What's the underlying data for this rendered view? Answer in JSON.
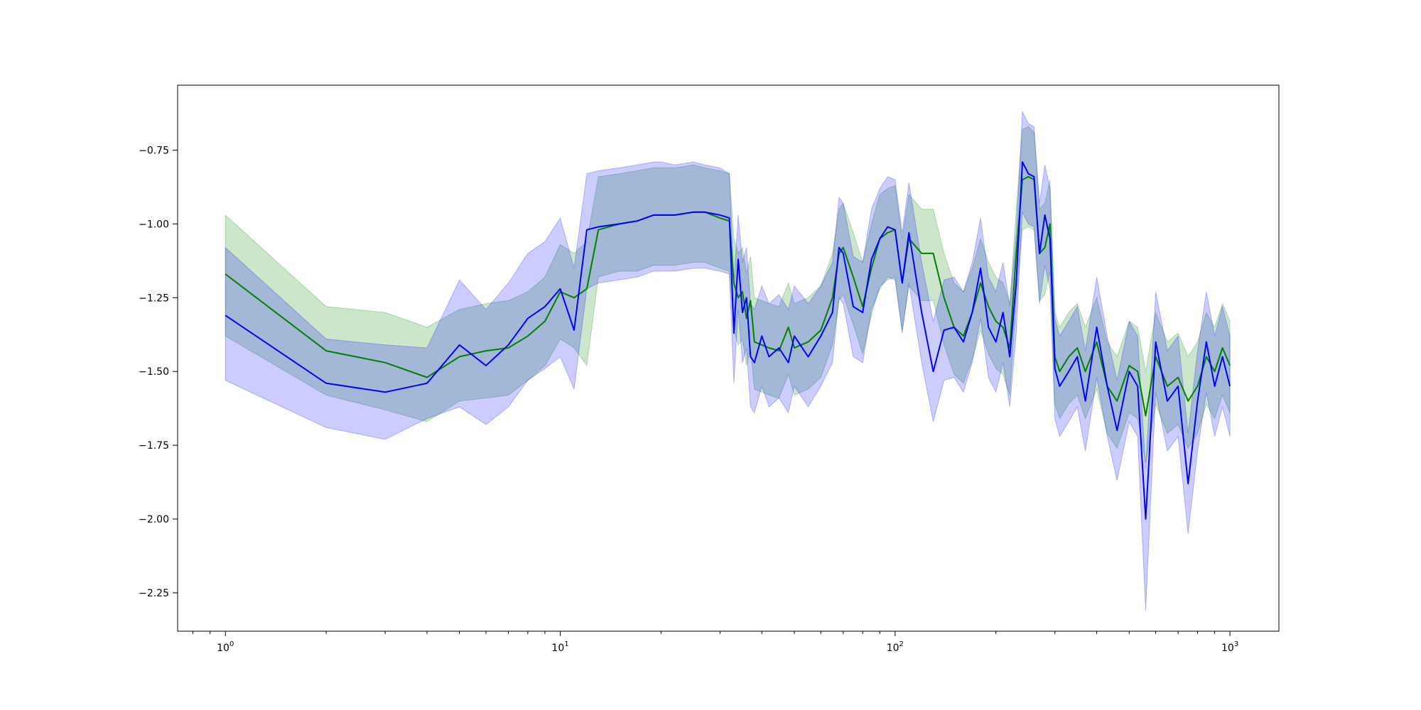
{
  "chart_data": {
    "type": "line",
    "title": "",
    "xlabel": "",
    "ylabel": "",
    "x_scale": "log",
    "xlim": [
      0.72,
      1400
    ],
    "ylim": [
      -2.38,
      -0.53
    ],
    "grid": false,
    "legend": "none",
    "x_ticks": [
      {
        "value": 1,
        "base": "10",
        "exp": "0"
      },
      {
        "value": 10,
        "base": "10",
        "exp": "1"
      },
      {
        "value": 100,
        "base": "10",
        "exp": "2"
      },
      {
        "value": 1000,
        "base": "10",
        "exp": "3"
      }
    ],
    "y_ticks": [
      {
        "value": -0.75,
        "label": "−0.75"
      },
      {
        "value": -1.0,
        "label": "−1.00"
      },
      {
        "value": -1.25,
        "label": "−1.25"
      },
      {
        "value": -1.5,
        "label": "−1.50"
      },
      {
        "value": -1.75,
        "label": "−1.75"
      },
      {
        "value": -2.0,
        "label": "−2.00"
      },
      {
        "value": -2.25,
        "label": "−2.25"
      }
    ],
    "series": [
      {
        "color": "#008000",
        "band_color": "#008000",
        "band_opacity": 0.2,
        "x": [
          1,
          2,
          3,
          4,
          5,
          6,
          7,
          8,
          9,
          10,
          11,
          12,
          13,
          15,
          17,
          19,
          20,
          22,
          25,
          27,
          30,
          32,
          33,
          34,
          35,
          36,
          37,
          38,
          40,
          42,
          45,
          48,
          50,
          55,
          60,
          65,
          68,
          70,
          75,
          80,
          85,
          90,
          95,
          100,
          105,
          110,
          120,
          130,
          140,
          150,
          160,
          170,
          180,
          190,
          200,
          210,
          220,
          230,
          240,
          250,
          260,
          270,
          280,
          290,
          300,
          310,
          330,
          350,
          370,
          400,
          430,
          460,
          500,
          530,
          560,
          600,
          650,
          700,
          750,
          800,
          850,
          900,
          950,
          1000
        ],
        "y": [
          -1.17,
          -1.43,
          -1.47,
          -1.52,
          -1.45,
          -1.43,
          -1.42,
          -1.38,
          -1.33,
          -1.23,
          -1.25,
          -1.22,
          -1.02,
          -1.0,
          -0.99,
          -0.97,
          -0.97,
          -0.97,
          -0.96,
          -0.96,
          -0.98,
          -0.99,
          -1.2,
          -1.25,
          -1.23,
          -1.32,
          -1.26,
          -1.4,
          -1.41,
          -1.42,
          -1.43,
          -1.35,
          -1.42,
          -1.4,
          -1.36,
          -1.25,
          -1.1,
          -1.08,
          -1.18,
          -1.28,
          -1.15,
          -1.05,
          -1.03,
          -1.02,
          -1.2,
          -1.05,
          -1.1,
          -1.1,
          -1.25,
          -1.35,
          -1.38,
          -1.3,
          -1.2,
          -1.28,
          -1.33,
          -1.35,
          -1.42,
          -1.1,
          -0.85,
          -0.84,
          -0.85,
          -1.1,
          -1.08,
          -1.0,
          -1.45,
          -1.5,
          -1.45,
          -1.42,
          -1.5,
          -1.4,
          -1.55,
          -1.6,
          -1.48,
          -1.5,
          -1.65,
          -1.45,
          -1.55,
          -1.52,
          -1.6,
          -1.55,
          -1.45,
          -1.5,
          -1.42,
          -1.48
        ],
        "upper": [
          -0.97,
          -1.28,
          -1.3,
          -1.35,
          -1.29,
          -1.27,
          -1.26,
          -1.23,
          -1.18,
          -1.07,
          -1.1,
          -1.06,
          -0.84,
          -0.83,
          -0.82,
          -0.81,
          -0.81,
          -0.81,
          -0.8,
          -0.81,
          -0.82,
          -0.83,
          -1.05,
          -1.1,
          -1.08,
          -1.17,
          -1.11,
          -1.25,
          -1.26,
          -1.27,
          -1.28,
          -1.2,
          -1.27,
          -1.25,
          -1.21,
          -1.1,
          -0.95,
          -0.93,
          -1.03,
          -1.13,
          -1.0,
          -0.9,
          -0.88,
          -0.87,
          -1.05,
          -0.9,
          -0.95,
          -0.95,
          -1.1,
          -1.2,
          -1.23,
          -1.15,
          -1.05,
          -1.13,
          -1.18,
          -1.2,
          -1.27,
          -0.95,
          -0.68,
          -0.67,
          -0.69,
          -0.95,
          -0.93,
          -0.85,
          -1.3,
          -1.35,
          -1.3,
          -1.27,
          -1.35,
          -1.25,
          -1.4,
          -1.45,
          -1.33,
          -1.35,
          -1.5,
          -1.3,
          -1.4,
          -1.37,
          -1.45,
          -1.4,
          -1.3,
          -1.35,
          -1.27,
          -1.33
        ],
        "lower": [
          -1.38,
          -1.58,
          -1.63,
          -1.67,
          -1.6,
          -1.59,
          -1.58,
          -1.53,
          -1.48,
          -1.39,
          -1.42,
          -1.48,
          -1.18,
          -1.16,
          -1.16,
          -1.14,
          -1.14,
          -1.14,
          -1.13,
          -1.13,
          -1.15,
          -1.16,
          -1.36,
          -1.41,
          -1.39,
          -1.48,
          -1.42,
          -1.56,
          -1.57,
          -1.58,
          -1.59,
          -1.51,
          -1.58,
          -1.56,
          -1.52,
          -1.41,
          -1.26,
          -1.24,
          -1.34,
          -1.44,
          -1.31,
          -1.21,
          -1.19,
          -1.18,
          -1.36,
          -1.21,
          -1.26,
          -1.26,
          -1.41,
          -1.51,
          -1.54,
          -1.46,
          -1.36,
          -1.44,
          -1.49,
          -1.51,
          -1.58,
          -1.26,
          -1.02,
          -1.01,
          -1.02,
          -1.26,
          -1.24,
          -1.16,
          -1.61,
          -1.66,
          -1.61,
          -1.58,
          -1.66,
          -1.56,
          -1.71,
          -1.76,
          -1.64,
          -1.66,
          -1.81,
          -1.61,
          -1.71,
          -1.68,
          -1.76,
          -1.71,
          -1.61,
          -1.66,
          -1.58,
          -1.64
        ]
      },
      {
        "color": "#0000ff",
        "band_color": "#0000ff",
        "band_opacity": 0.2,
        "x": [
          1,
          2,
          3,
          4,
          5,
          6,
          7,
          8,
          9,
          10,
          11,
          12,
          13,
          15,
          17,
          19,
          20,
          22,
          25,
          27,
          30,
          32,
          33,
          34,
          35,
          36,
          37,
          38,
          40,
          42,
          45,
          48,
          50,
          55,
          60,
          65,
          68,
          70,
          75,
          80,
          85,
          90,
          95,
          100,
          105,
          110,
          120,
          130,
          140,
          150,
          160,
          170,
          180,
          190,
          200,
          210,
          220,
          230,
          240,
          250,
          260,
          270,
          280,
          290,
          300,
          310,
          330,
          350,
          370,
          400,
          430,
          460,
          500,
          530,
          560,
          600,
          650,
          700,
          750,
          800,
          850,
          900,
          950,
          1000
        ],
        "y": [
          -1.31,
          -1.54,
          -1.57,
          -1.54,
          -1.41,
          -1.48,
          -1.41,
          -1.32,
          -1.28,
          -1.22,
          -1.36,
          -1.02,
          -1.01,
          -1.0,
          -0.99,
          -0.97,
          -0.97,
          -0.97,
          -0.96,
          -0.96,
          -0.97,
          -0.98,
          -1.37,
          -1.12,
          -1.3,
          -1.25,
          -1.45,
          -1.47,
          -1.38,
          -1.45,
          -1.42,
          -1.47,
          -1.38,
          -1.45,
          -1.38,
          -1.3,
          -1.08,
          -1.1,
          -1.28,
          -1.3,
          -1.12,
          -1.05,
          -1.01,
          -1.02,
          -1.2,
          -1.03,
          -1.3,
          -1.5,
          -1.36,
          -1.35,
          -1.4,
          -1.3,
          -1.15,
          -1.35,
          -1.4,
          -1.3,
          -1.45,
          -1.2,
          -0.79,
          -0.83,
          -0.84,
          -1.1,
          -0.97,
          -1.05,
          -1.49,
          -1.55,
          -1.5,
          -1.45,
          -1.6,
          -1.35,
          -1.55,
          -1.7,
          -1.5,
          -1.55,
          -2.0,
          -1.4,
          -1.6,
          -1.55,
          -1.88,
          -1.6,
          -1.4,
          -1.55,
          -1.45,
          -1.55
        ],
        "upper": [
          -1.08,
          -1.39,
          -1.41,
          -1.42,
          -1.19,
          -1.29,
          -1.2,
          -1.1,
          -1.06,
          -0.98,
          -1.15,
          -0.83,
          -0.82,
          -0.81,
          -0.8,
          -0.79,
          -0.79,
          -0.8,
          -0.79,
          -0.8,
          -0.81,
          -0.83,
          -1.2,
          -0.97,
          -1.13,
          -1.08,
          -1.27,
          -1.29,
          -1.21,
          -1.27,
          -1.24,
          -1.29,
          -1.21,
          -1.27,
          -1.21,
          -1.13,
          -0.91,
          -0.93,
          -1.11,
          -1.13,
          -0.95,
          -0.88,
          -0.84,
          -0.85,
          -1.03,
          -0.86,
          -1.13,
          -1.33,
          -1.19,
          -1.18,
          -1.23,
          -1.13,
          -0.98,
          -1.18,
          -1.23,
          -1.13,
          -1.28,
          -1.03,
          -0.62,
          -0.66,
          -0.67,
          -0.93,
          -0.8,
          -0.88,
          -1.32,
          -1.38,
          -1.33,
          -1.28,
          -1.43,
          -1.18,
          -1.38,
          -1.53,
          -1.33,
          -1.38,
          -1.83,
          -1.23,
          -1.43,
          -1.38,
          -1.71,
          -1.43,
          -1.23,
          -1.38,
          -1.28,
          -1.38
        ],
        "lower": [
          -1.53,
          -1.69,
          -1.73,
          -1.66,
          -1.62,
          -1.68,
          -1.62,
          -1.53,
          -1.49,
          -1.45,
          -1.56,
          -1.22,
          -1.2,
          -1.19,
          -1.18,
          -1.16,
          -1.16,
          -1.16,
          -1.15,
          -1.15,
          -1.16,
          -1.17,
          -1.54,
          -1.29,
          -1.47,
          -1.42,
          -1.62,
          -1.64,
          -1.55,
          -1.62,
          -1.59,
          -1.64,
          -1.55,
          -1.62,
          -1.55,
          -1.47,
          -1.25,
          -1.27,
          -1.45,
          -1.47,
          -1.29,
          -1.22,
          -1.18,
          -1.19,
          -1.37,
          -1.2,
          -1.47,
          -1.67,
          -1.53,
          -1.52,
          -1.57,
          -1.47,
          -1.32,
          -1.52,
          -1.57,
          -1.47,
          -1.62,
          -1.37,
          -0.96,
          -1.0,
          -1.01,
          -1.27,
          -1.14,
          -1.22,
          -1.66,
          -1.72,
          -1.67,
          -1.62,
          -1.77,
          -1.52,
          -1.72,
          -1.87,
          -1.67,
          -1.72,
          -2.31,
          -1.57,
          -1.77,
          -1.72,
          -2.05,
          -1.77,
          -1.57,
          -1.72,
          -1.62,
          -1.72
        ]
      }
    ]
  }
}
